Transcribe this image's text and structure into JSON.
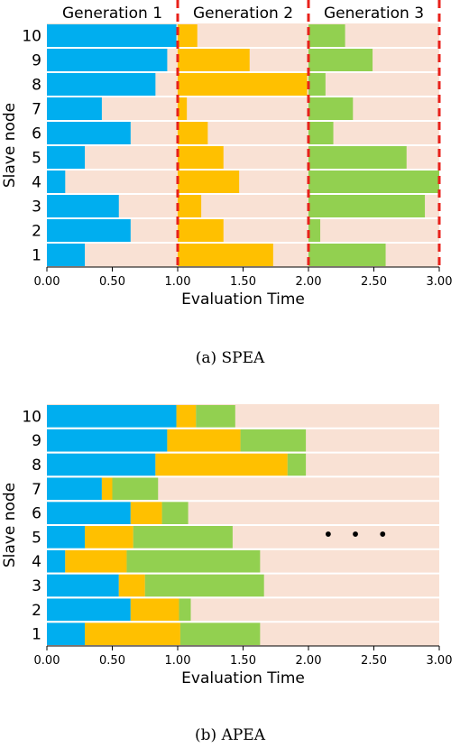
{
  "chart_data": [
    {
      "type": "bar",
      "orientation": "horizontal-stacked",
      "caption": "(a) SPEA",
      "xlabel": "Evaluation Time",
      "ylabel": "Slave node",
      "xlim": [
        0,
        3
      ],
      "xticks": [
        "0.00",
        "0.50",
        "1.00",
        "1.50",
        "2.00",
        "2.50",
        "3.00"
      ],
      "categories": [
        "1",
        "2",
        "3",
        "4",
        "5",
        "6",
        "7",
        "8",
        "9",
        "10"
      ],
      "background_color": "#f9e1d4",
      "generation_boundaries": [
        1,
        2,
        3
      ],
      "boundary_color": "#e8211b",
      "generation_labels": [
        "Generation 1",
        "Generation 2",
        "Generation 3"
      ],
      "series": [
        {
          "color": "#00aeef",
          "start": [
            0,
            0,
            0,
            0,
            0,
            0,
            0,
            0,
            0,
            0
          ],
          "values": [
            0.29,
            0.64,
            0.55,
            0.14,
            0.29,
            0.64,
            0.42,
            0.83,
            0.92,
            0.99
          ]
        },
        {
          "color": "#ffc000",
          "start": [
            1,
            1,
            1,
            1,
            1,
            1,
            1,
            1,
            1,
            1
          ],
          "values": [
            0.73,
            0.35,
            0.18,
            0.47,
            0.35,
            0.23,
            0.07,
            0.99,
            0.55,
            0.15
          ]
        },
        {
          "color": "#92d050",
          "start": [
            2,
            2,
            2,
            2,
            2,
            2,
            2,
            2,
            2,
            2
          ],
          "values": [
            0.59,
            0.09,
            0.89,
            1.0,
            0.75,
            0.19,
            0.34,
            0.13,
            0.49,
            0.28
          ]
        }
      ]
    },
    {
      "type": "bar",
      "orientation": "horizontal-stacked",
      "caption": "(b) APEA",
      "xlabel": "Evaluation Time",
      "ylabel": "Slave node",
      "xlim": [
        0,
        3
      ],
      "xticks": [
        "0.00",
        "0.50",
        "1.00",
        "1.50",
        "2.00",
        "2.50",
        "3.00"
      ],
      "categories": [
        "1",
        "2",
        "3",
        "4",
        "5",
        "6",
        "7",
        "8",
        "9",
        "10"
      ],
      "background_color": "#f9e1d4",
      "annotation": "• • •",
      "series": [
        {
          "color": "#00aeef",
          "values": [
            0.29,
            0.64,
            0.55,
            0.14,
            0.29,
            0.64,
            0.42,
            0.83,
            0.92,
            0.99
          ]
        },
        {
          "color": "#ffc000",
          "values": [
            0.73,
            0.37,
            0.2,
            0.47,
            0.37,
            0.24,
            0.08,
            1.01,
            0.56,
            0.15
          ]
        },
        {
          "color": "#92d050",
          "values": [
            0.61,
            0.09,
            0.91,
            1.02,
            0.76,
            0.2,
            0.35,
            0.14,
            0.5,
            0.3
          ]
        }
      ]
    }
  ]
}
